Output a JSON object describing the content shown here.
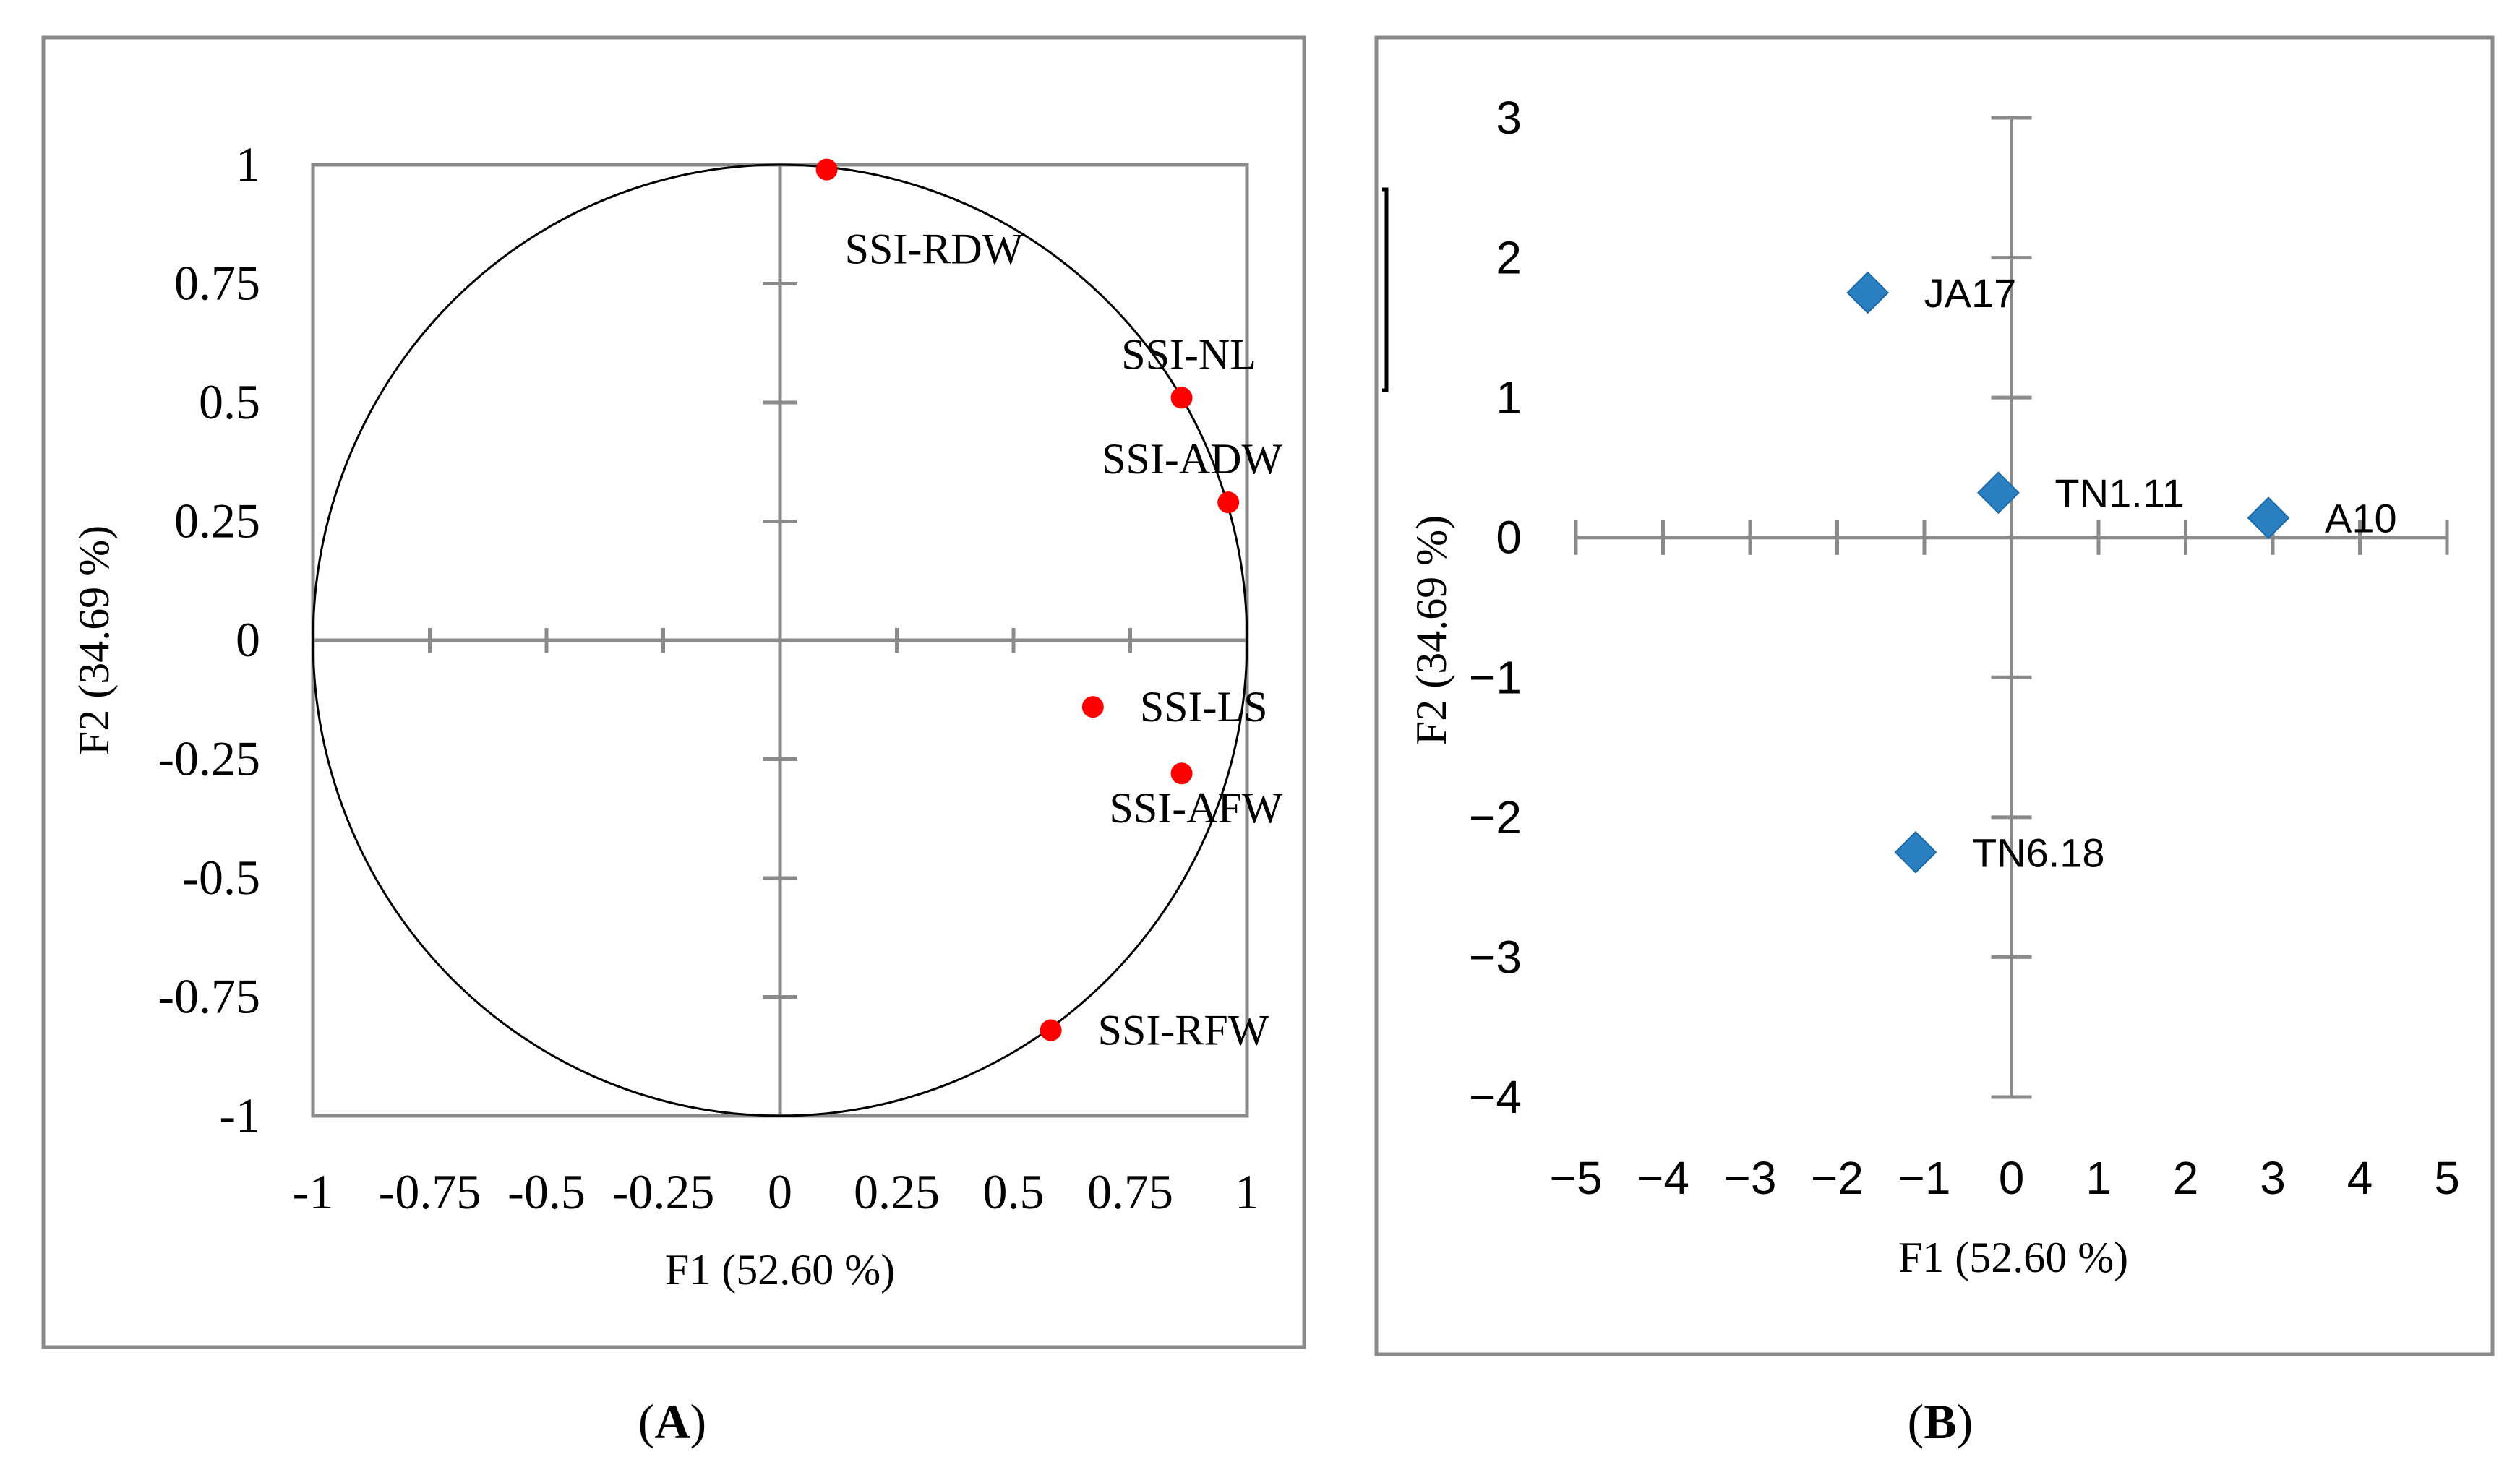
{
  "chart_data": [
    {
      "panel": "A",
      "panel_caption": "A",
      "type": "scatter",
      "subtype": "correlation-circle",
      "xlabel": "F1 (52.60 %)",
      "ylabel": "F2 (34.69 %)",
      "xlim": [
        -1,
        1
      ],
      "ylim": [
        -1,
        1
      ],
      "xticks": [
        -1,
        -0.75,
        -0.5,
        -0.25,
        0,
        0.25,
        0.5,
        0.75,
        1
      ],
      "xtick_labels": [
        "-1",
        "-0.75",
        "-0.5",
        "-0.25",
        "0",
        "0.25",
        "0.5",
        "0.75",
        "1"
      ],
      "yticks": [
        1,
        0.75,
        0.5,
        0.25,
        0,
        -0.25,
        -0.5,
        -0.75,
        -1
      ],
      "ytick_labels": [
        "1",
        "0.75",
        "0.5",
        "0.25",
        "0",
        "-0.25",
        "-0.5",
        "-0.75",
        "-1"
      ],
      "point_color": "#ff0000",
      "points": [
        {
          "label": "SSI-RDW",
          "x": 0.1,
          "y": 0.99
        },
        {
          "label": "SSI-NL",
          "x": 0.86,
          "y": 0.51
        },
        {
          "label": "SSI-ADW",
          "x": 0.96,
          "y": 0.29
        },
        {
          "label": "SSI-LS",
          "x": 0.67,
          "y": -0.14
        },
        {
          "label": "SSI-AFW",
          "x": 0.86,
          "y": -0.28
        },
        {
          "label": "SSI-RFW",
          "x": 0.58,
          "y": -0.82
        }
      ]
    },
    {
      "panel": "B",
      "panel_caption": "B",
      "type": "scatter",
      "xlabel": "F1 (52.60 %)",
      "ylabel": "F2 (34.69 %)",
      "xlim": [
        -5,
        5
      ],
      "ylim": [
        -4,
        3
      ],
      "xticks": [
        -5,
        -4,
        -3,
        -2,
        -1,
        0,
        1,
        2,
        3,
        4,
        5
      ],
      "xtick_labels": [
        "-5",
        "-4",
        "-3",
        "-2",
        "-1",
        "0",
        "1",
        "2",
        "3",
        "4",
        "5"
      ],
      "yticks": [
        3,
        2,
        1,
        0,
        -1,
        -2,
        -3,
        -4
      ],
      "ytick_labels": [
        "3",
        "2",
        "1",
        "0",
        "-1",
        "-2",
        "-3",
        "-4"
      ],
      "point_color": "#2a7fc0",
      "points": [
        {
          "label": "JA17",
          "x": -1.65,
          "y": 1.75
        },
        {
          "label": "TN1.11",
          "x": -0.15,
          "y": 0.32
        },
        {
          "label": "A10",
          "x": 2.95,
          "y": 0.14
        },
        {
          "label": "TN6.18",
          "x": -1.1,
          "y": -2.25
        }
      ]
    }
  ]
}
